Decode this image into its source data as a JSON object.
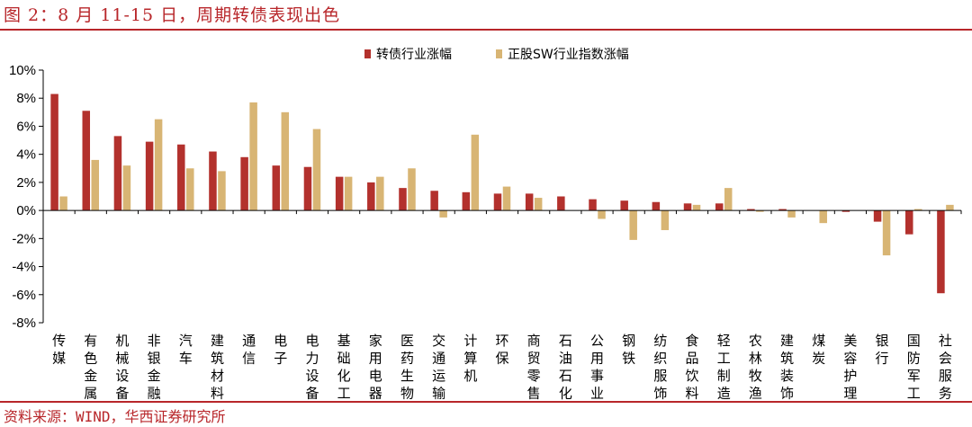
{
  "header": {
    "title": "图 2：8 月 11-15 日，周期转债表现出色"
  },
  "footer": {
    "source": "资料来源：WIND，华西证券研究所"
  },
  "colors": {
    "accent": "#b8262a",
    "series1": "#b3312d",
    "series2": "#d8b574"
  },
  "chart_data": {
    "type": "bar",
    "categories": [
      "传媒",
      "有色金属",
      "机械设备",
      "非银金融",
      "汽车",
      "建筑材料",
      "通信",
      "电子",
      "电力设备",
      "基础化工",
      "家用电器",
      "医药生物",
      "交通运输",
      "计算机",
      "环保",
      "商贸零售",
      "石油石化",
      "公用事业",
      "钢铁",
      "纺织服饰",
      "食品饮料",
      "轻工制造",
      "农林牧渔",
      "建筑装饰",
      "煤炭",
      "美容护理",
      "银行",
      "国防军工",
      "社会服务"
    ],
    "series": [
      {
        "name": "转债行业涨幅",
        "values": [
          8.3,
          7.1,
          5.3,
          4.9,
          4.7,
          4.2,
          3.8,
          3.2,
          3.1,
          2.4,
          2.0,
          1.6,
          1.4,
          1.3,
          1.2,
          1.2,
          1.0,
          0.8,
          0.7,
          0.6,
          0.5,
          0.5,
          0.1,
          0.1,
          0.0,
          -0.1,
          -0.8,
          -1.7,
          -5.9
        ]
      },
      {
        "name": "正股SW行业指数涨幅",
        "values": [
          1.0,
          3.6,
          3.2,
          6.5,
          3.0,
          2.8,
          7.7,
          7.0,
          5.8,
          2.4,
          2.4,
          3.0,
          -0.5,
          5.4,
          1.7,
          0.9,
          0.0,
          -0.6,
          -2.1,
          -1.4,
          0.4,
          1.6,
          -0.1,
          -0.5,
          -0.9,
          0.0,
          -3.2,
          0.1,
          0.4
        ]
      }
    ],
    "yticks": [
      "10%",
      "8%",
      "6%",
      "4%",
      "2%",
      "0%",
      "-2%",
      "-4%",
      "-6%",
      "-8%"
    ],
    "ylim": [
      -8,
      10
    ],
    "legend": "top-right",
    "grid": false
  }
}
